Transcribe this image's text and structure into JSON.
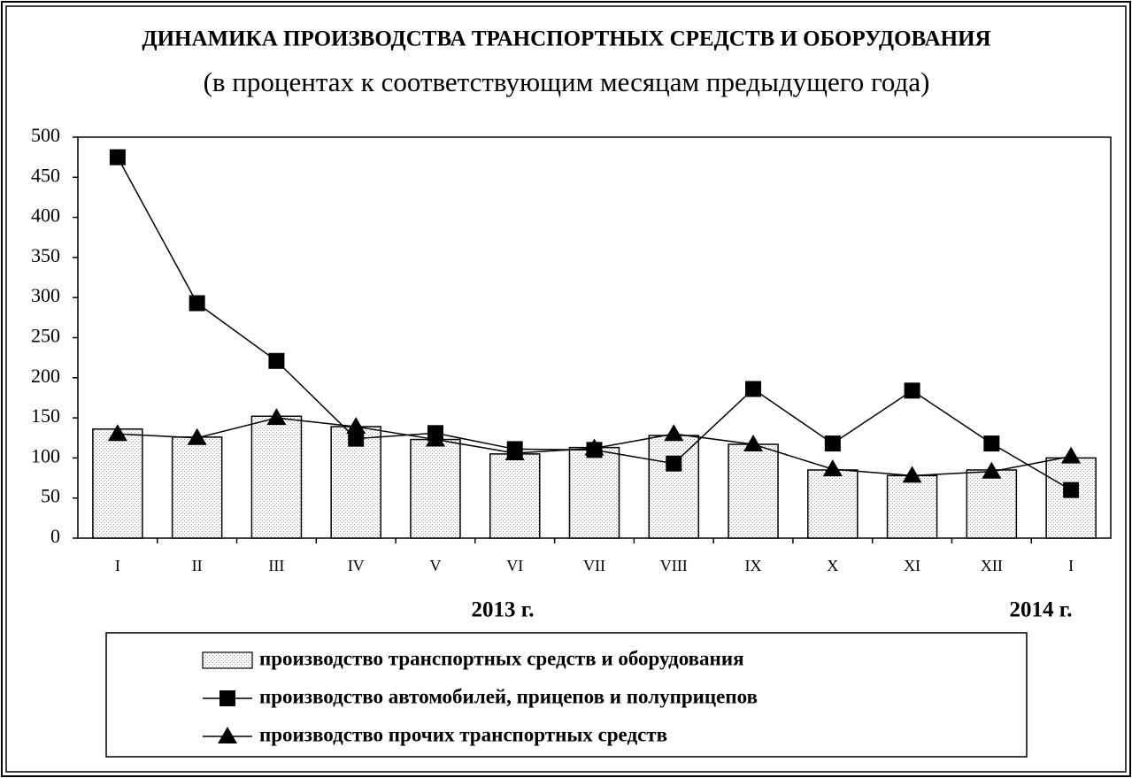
{
  "chart_data": {
    "type": "bar",
    "title": "ДИНАМИКА ПРОИЗВОДСТВА ТРАНСПОРТНЫХ СРЕДСТВ И ОБОРУДОВАНИЯ",
    "subtitle": "(в процентах к соответствующим месяцам предыдущего года)",
    "categories": [
      "I",
      "II",
      "III",
      "IV",
      "V",
      "VI",
      "VII",
      "VIII",
      "IX",
      "X",
      "XI",
      "XII",
      "I"
    ],
    "annotations": [
      "2013 г.",
      "2014 г."
    ],
    "series": [
      {
        "name": "производство транспортных средств и оборудования",
        "type": "bar",
        "color": "#9a9a9a",
        "values": [
          136,
          126,
          152,
          139,
          123,
          105,
          113,
          128,
          117,
          85,
          78,
          85,
          100
        ]
      },
      {
        "name": "производство автомобилей, прицепов и полуприцепов",
        "type": "line",
        "marker": "square",
        "color": "#000000",
        "values": [
          475,
          293,
          221,
          124,
          131,
          111,
          110,
          93,
          186,
          118,
          184,
          118,
          60
        ]
      },
      {
        "name": "производство прочих транспортных средств",
        "type": "line",
        "marker": "triangle",
        "color": "#000000",
        "values": [
          130,
          125,
          150,
          139,
          123,
          106,
          112,
          130,
          117,
          86,
          78,
          83,
          102
        ]
      }
    ],
    "ylim": [
      0,
      500
    ],
    "yticks": [
      0,
      50,
      100,
      150,
      200,
      250,
      300,
      350,
      400,
      450,
      500
    ]
  }
}
